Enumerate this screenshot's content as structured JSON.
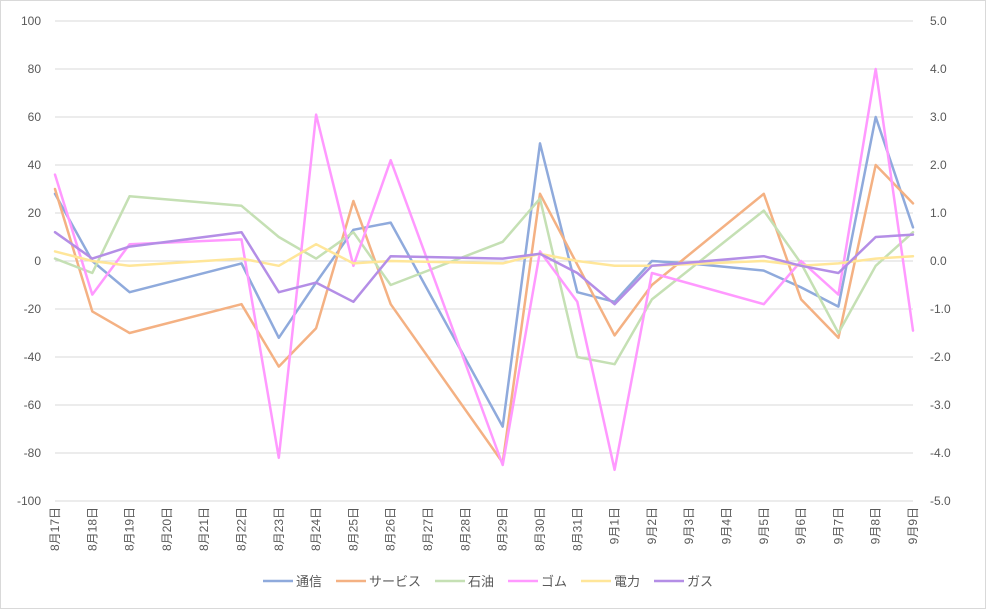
{
  "chart_data": {
    "type": "line",
    "title": "",
    "xlabel": "",
    "ylabel": "",
    "ylim": [
      -100,
      100
    ],
    "y2lim": [
      -5.0,
      5.0
    ],
    "y_ticks": [
      "100",
      "80",
      "60",
      "40",
      "20",
      "0",
      "-20",
      "-40",
      "-60",
      "-80",
      "-100"
    ],
    "y2_ticks": [
      "5.0",
      "4.0",
      "3.0",
      "2.0",
      "1.0",
      "0.0",
      "-1.0",
      "-2.0",
      "-3.0",
      "-4.0",
      "-5.0"
    ],
    "grid": true,
    "legend_position": "bottom",
    "categories": [
      "8月17日",
      "8月18日",
      "8月19日",
      "8月20日",
      "8月21日",
      "8月22日",
      "8月23日",
      "8月24日",
      "8月25日",
      "8月26日",
      "8月27日",
      "8月28日",
      "8月29日",
      "8月30日",
      "8月31日",
      "9月1日",
      "9月2日",
      "9月3日",
      "9月4日",
      "9月5日",
      "9月6日",
      "9月7日",
      "9月8日",
      "9月9日"
    ],
    "series": [
      {
        "name": "通信",
        "color": "#8faadc",
        "values": [
          28,
          0,
          -13,
          null,
          null,
          -1,
          -32,
          -9,
          13,
          16,
          null,
          null,
          -69,
          49,
          -13,
          -17,
          0,
          -1,
          null,
          -4,
          -11,
          -19,
          60,
          14
        ]
      },
      {
        "name": "サービス",
        "color": "#f4b183",
        "values": [
          30,
          -21,
          -30,
          null,
          null,
          -18,
          -44,
          -28,
          25,
          -18,
          null,
          null,
          -84,
          28,
          null,
          -31,
          -10,
          null,
          null,
          28,
          -16,
          -32,
          40,
          24
        ]
      },
      {
        "name": "石油",
        "color": "#c5e0b4",
        "values": [
          1,
          -5,
          27,
          null,
          null,
          23,
          10,
          1,
          12,
          -10,
          null,
          null,
          8,
          26,
          -40,
          -43,
          -16,
          null,
          null,
          21,
          -1,
          -30,
          -2,
          12
        ]
      },
      {
        "name": "ゴム",
        "color": "#ff99ff",
        "values": [
          36,
          -14,
          7,
          null,
          null,
          9,
          -82,
          61,
          -2,
          42,
          null,
          null,
          -85,
          4,
          -17,
          -87,
          -5,
          null,
          null,
          -18,
          0,
          -14,
          80,
          -29
        ]
      },
      {
        "name": "電力",
        "color": "#ffe699",
        "values": [
          4,
          0,
          -2,
          null,
          null,
          1,
          -2,
          7,
          -1,
          0,
          null,
          null,
          -1,
          3,
          0,
          -2,
          -2,
          null,
          null,
          0,
          -2,
          -1,
          1,
          2
        ]
      },
      {
        "name": "ガス",
        "color": "#b48ee6",
        "values": [
          12,
          1,
          6,
          null,
          null,
          12,
          -13,
          -9,
          -17,
          2,
          null,
          null,
          1,
          3,
          -5,
          -18,
          -2,
          null,
          null,
          2,
          -2,
          -5,
          10,
          11
        ]
      }
    ]
  }
}
